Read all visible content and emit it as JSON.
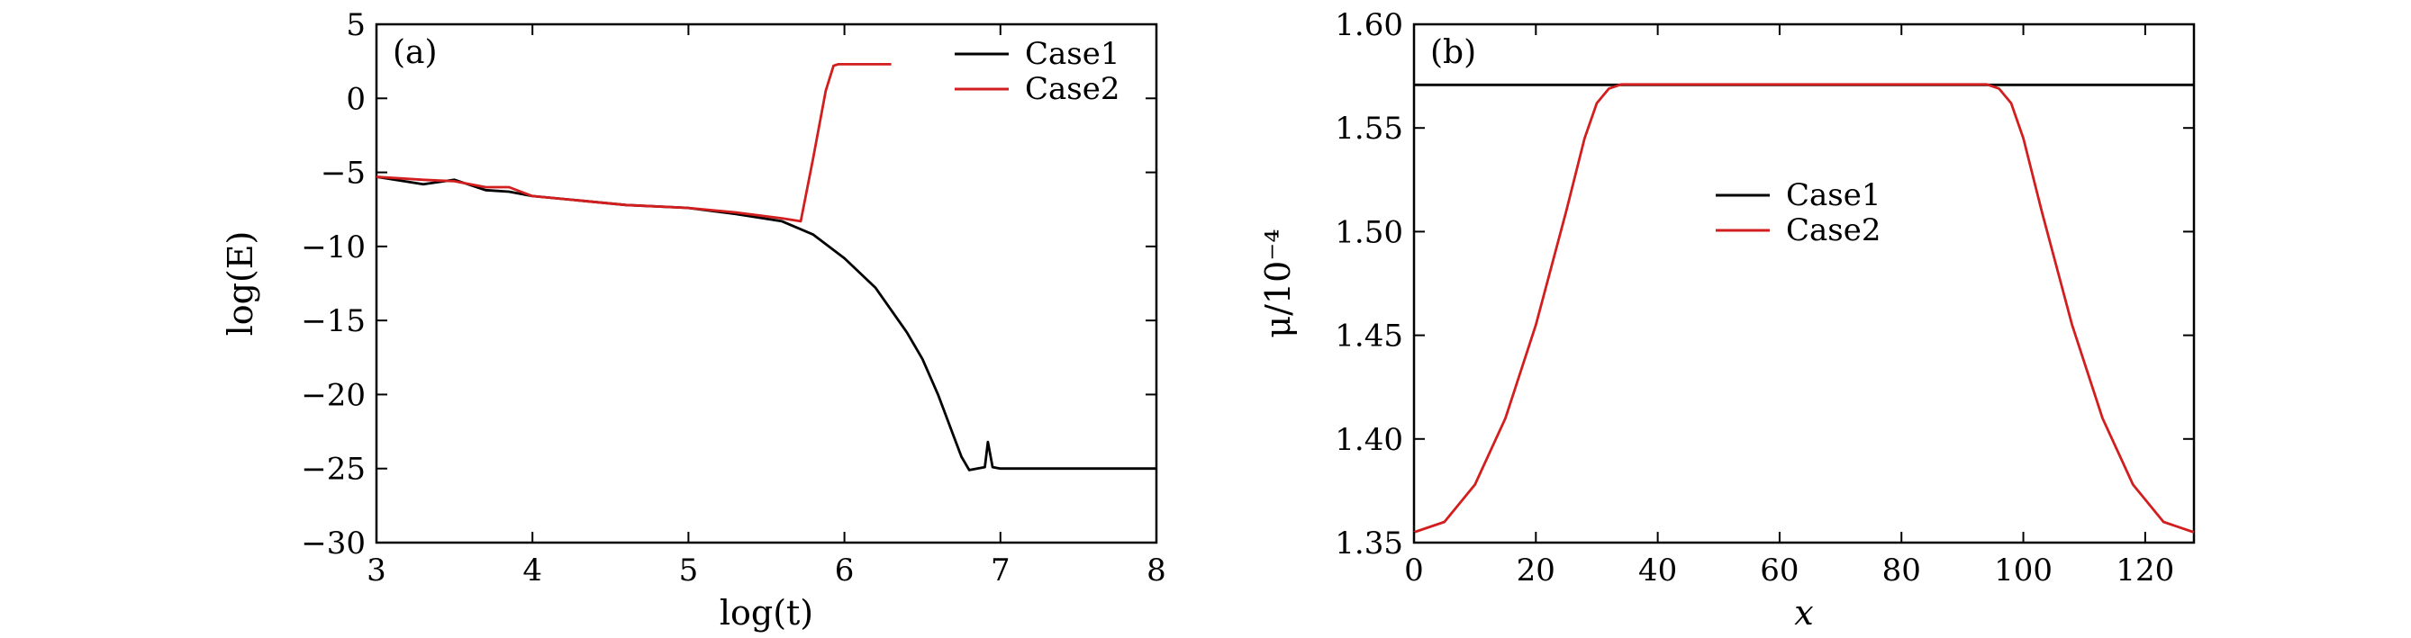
{
  "chart_data": [
    {
      "type": "line",
      "panel_label": "(a)",
      "xlabel": "log(t)",
      "ylabel": "log(E)",
      "xlim": [
        3,
        8
      ],
      "ylim": [
        -30,
        5
      ],
      "xticks": [
        "3",
        "4",
        "5",
        "6",
        "7",
        "8"
      ],
      "yticks": [
        "5",
        "0",
        "−5",
        "−10",
        "−15",
        "−20",
        "−25",
        "−30"
      ],
      "legend": "top-right",
      "grid": false,
      "series": [
        {
          "name": "Case1",
          "color": "#000000",
          "x": [
            3.0,
            3.3,
            3.5,
            3.7,
            3.85,
            4.0,
            4.3,
            4.6,
            5.0,
            5.3,
            5.6,
            5.8,
            6.0,
            6.2,
            6.4,
            6.5,
            6.6,
            6.7,
            6.75,
            6.8,
            6.85,
            6.9,
            6.92,
            6.95,
            7.0,
            7.3,
            7.6,
            8.0
          ],
          "y": [
            -5.3,
            -5.8,
            -5.5,
            -6.2,
            -6.3,
            -6.6,
            -6.9,
            -7.2,
            -7.4,
            -7.8,
            -8.3,
            -9.2,
            -10.8,
            -12.8,
            -15.8,
            -17.6,
            -20.0,
            -22.8,
            -24.2,
            -25.1,
            -25.0,
            -24.9,
            -23.2,
            -24.9,
            -25.0,
            -25.0,
            -25.0,
            -25.0
          ]
        },
        {
          "name": "Case2",
          "color": "#d21e1e",
          "x": [
            3.0,
            3.3,
            3.5,
            3.7,
            3.85,
            4.0,
            4.3,
            4.6,
            5.0,
            5.3,
            5.6,
            5.72,
            5.8,
            5.88,
            5.93,
            5.96,
            6.0,
            6.3
          ],
          "y": [
            -5.3,
            -5.5,
            -5.6,
            -6.0,
            -6.0,
            -6.6,
            -6.9,
            -7.2,
            -7.4,
            -7.7,
            -8.1,
            -8.3,
            -4.0,
            0.5,
            2.2,
            2.3,
            2.3,
            2.3
          ]
        }
      ]
    },
    {
      "type": "line",
      "panel_label": "(b)",
      "xlabel": "x",
      "ylabel": "μ/10⁻⁴",
      "xlim": [
        0,
        128
      ],
      "ylim": [
        1.35,
        1.6
      ],
      "xticks": [
        "0",
        "20",
        "40",
        "60",
        "80",
        "100",
        "120"
      ],
      "yticks": [
        "1.60",
        "1.55",
        "1.50",
        "1.45",
        "1.40",
        "1.35"
      ],
      "legend": "center",
      "grid": false,
      "series": [
        {
          "name": "Case1",
          "color": "#000000",
          "x": [
            0,
            128
          ],
          "y": [
            1.5708,
            1.5708
          ]
        },
        {
          "name": "Case2",
          "color": "#d21e1e",
          "x": [
            0,
            5,
            10,
            15,
            20,
            25,
            28,
            30,
            32,
            34,
            36,
            40,
            60,
            80,
            92,
            94,
            96,
            98,
            100,
            103,
            108,
            113,
            118,
            123,
            128
          ],
          "y": [
            1.355,
            1.36,
            1.378,
            1.41,
            1.455,
            1.51,
            1.545,
            1.562,
            1.569,
            1.571,
            1.571,
            1.571,
            1.571,
            1.571,
            1.571,
            1.571,
            1.569,
            1.562,
            1.545,
            1.51,
            1.455,
            1.41,
            1.378,
            1.36,
            1.355
          ]
        }
      ]
    }
  ]
}
